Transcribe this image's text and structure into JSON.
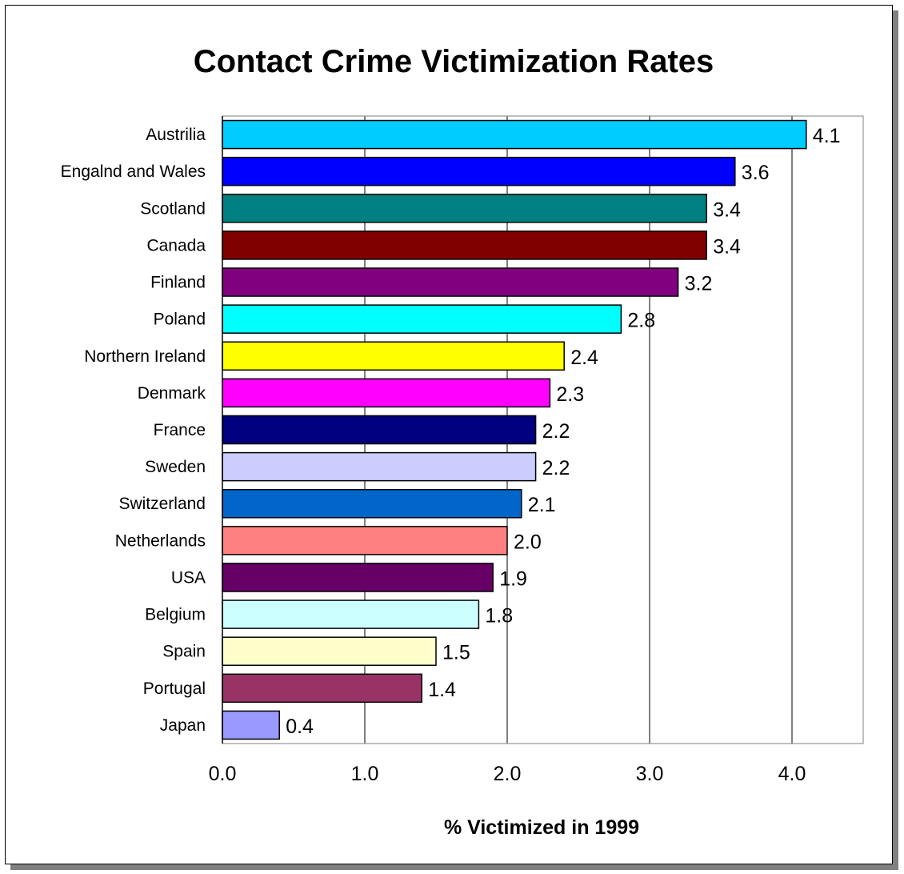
{
  "chart_data": {
    "type": "bar",
    "orientation": "horizontal",
    "title": "Contact Crime Victimization Rates",
    "xlabel": "% Victimized in 1999",
    "ylabel": "",
    "xlim": [
      0,
      4.5
    ],
    "xticks": [
      "0.0",
      "1.0",
      "2.0",
      "3.0",
      "4.0"
    ],
    "grid": true,
    "legend": "none",
    "categories": [
      "Austrilia",
      "Engalnd and Wales",
      "Scotland",
      "Canada",
      "Finland",
      "Poland",
      "Northern Ireland",
      "Denmark",
      "France",
      "Sweden",
      "Switzerland",
      "Netherlands",
      "USA",
      "Belgium",
      "Spain",
      "Portugal",
      "Japan"
    ],
    "values": [
      4.1,
      3.6,
      3.4,
      3.4,
      3.2,
      2.8,
      2.4,
      2.3,
      2.2,
      2.2,
      2.1,
      2.0,
      1.9,
      1.8,
      1.5,
      1.4,
      0.4
    ],
    "value_labels": [
      "4.1",
      "3.6",
      "3.4",
      "3.4",
      "3.2",
      "2.8",
      "2.4",
      "2.3",
      "2.2",
      "2.2",
      "2.1",
      "2.0",
      "1.9",
      "1.8",
      "1.5",
      "1.4",
      "0.4"
    ],
    "colors": [
      "#00CCFF",
      "#0000FF",
      "#008080",
      "#800000",
      "#800080",
      "#00FFFF",
      "#FFFF00",
      "#FF00FF",
      "#000080",
      "#CCCCFF",
      "#0066CC",
      "#FF8080",
      "#660066",
      "#CCFFFF",
      "#FFFFCC",
      "#993366",
      "#9999FF"
    ]
  }
}
